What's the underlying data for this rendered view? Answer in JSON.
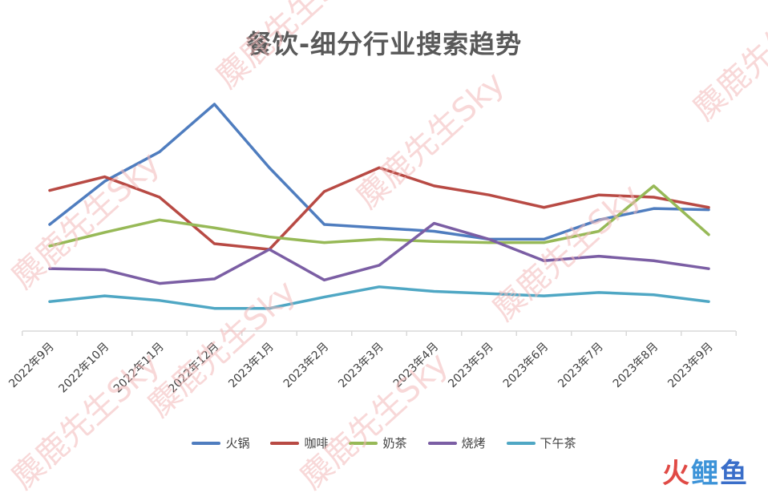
{
  "chart_data": {
    "type": "line",
    "title": "餐饮-细分行业搜索趋势",
    "categories": [
      "2022年9月",
      "2022年10月",
      "2022年11月",
      "2022年12月",
      "2023年1月",
      "2023年2月",
      "2023年3月",
      "2023年4月",
      "2023年5月",
      "2023年6月",
      "2023年7月",
      "2023年8月",
      "2023年9月"
    ],
    "ylim": [
      0,
      100
    ],
    "grid": false,
    "legend_position": "bottom",
    "series": [
      {
        "name": "火锅",
        "color": "#4f7dbf",
        "values": [
          47,
          66,
          79,
          100,
          72,
          47,
          45.5,
          44,
          40.5,
          40.5,
          49,
          54,
          53.5
        ]
      },
      {
        "name": "咖啡",
        "color": "#b84a44",
        "values": [
          62,
          68,
          59,
          38.5,
          36,
          61.5,
          72,
          64,
          60,
          54.5,
          60,
          59,
          54.5
        ]
      },
      {
        "name": "奶茶",
        "color": "#97b957",
        "values": [
          37.5,
          43.5,
          49,
          45.5,
          41.5,
          39,
          40.5,
          39.5,
          39,
          39,
          44,
          64,
          42.5
        ]
      },
      {
        "name": "烧烤",
        "color": "#7b5ea4",
        "values": [
          27.5,
          27,
          21,
          23,
          36,
          22.5,
          29,
          47.5,
          40.5,
          31,
          33,
          31,
          27.5
        ]
      },
      {
        "name": "下午茶",
        "color": "#4fa7c4",
        "values": [
          13,
          15.5,
          13.5,
          10,
          10,
          15,
          19.5,
          17.5,
          16.5,
          15.5,
          17,
          16,
          13
        ]
      }
    ]
  },
  "watermark": "麋鹿先生Sky",
  "logo": {
    "part1": "火",
    "part2": "鲤",
    "part3": "鱼"
  }
}
